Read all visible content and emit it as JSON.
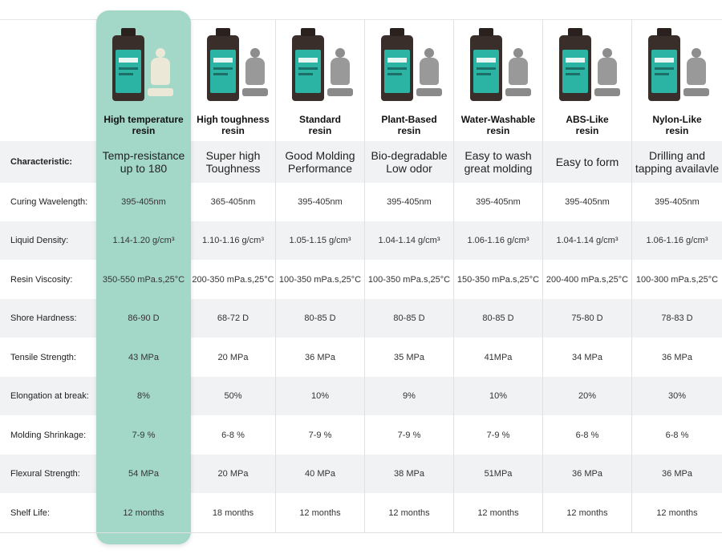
{
  "row_labels": [
    "Characteristic:",
    "Curing Wavelength:",
    "Liquid Density:",
    "Resin Viscosity:",
    "Shore Hardness:",
    "Tensile Strength:",
    "Elongation at break:",
    "Molding Shrinkage:",
    "Flexural Strength:",
    "Shelf Life:"
  ],
  "products": [
    {
      "name_line1": "High temperature",
      "name_line2": "resin",
      "char_line1": "Temp-resistance",
      "char_line2": "up to 180",
      "values": [
        "395-405nm",
        "1.14-1.20 g/cm³",
        "350-550 mPa.s,25°C",
        "86-90 D",
        "43 MPa",
        "8%",
        "7-9 %",
        "54 MPa",
        "12 months"
      ]
    },
    {
      "name_line1": "High toughness",
      "name_line2": "resin",
      "char_line1": "Super high",
      "char_line2": "Toughness",
      "values": [
        "365-405nm",
        "1.10-1.16 g/cm³",
        "200-350 mPa.s,25°C",
        "68-72 D",
        "20 MPa",
        "50%",
        "6-8 %",
        "20 MPa",
        "18 months"
      ]
    },
    {
      "name_line1": "Standard",
      "name_line2": "resin",
      "char_line1": "Good Molding",
      "char_line2": "Performance",
      "values": [
        "395-405nm",
        "1.05-1.15 g/cm³",
        "100-350 mPa.s,25°C",
        "80-85 D",
        "36 MPa",
        "10%",
        "7-9 %",
        "40 MPa",
        "12 months"
      ]
    },
    {
      "name_line1": "Plant-Based",
      "name_line2": "resin",
      "char_line1": "Bio-degradable",
      "char_line2": "Low odor",
      "values": [
        "395-405nm",
        "1.04-1.14 g/cm³",
        "100-350 mPa.s,25°C",
        "80-85 D",
        "35 MPa",
        "9%",
        "7-9 %",
        "38 MPa",
        "12 months"
      ]
    },
    {
      "name_line1": "Water-Washable",
      "name_line2": "resin",
      "char_line1": "Easy to wash",
      "char_line2": "great molding",
      "values": [
        "395-405nm",
        "1.06-1.16 g/cm³",
        "150-350 mPa.s,25°C",
        "80-85 D",
        "41MPa",
        "10%",
        "7-9 %",
        "51MPa",
        "12 months"
      ]
    },
    {
      "name_line1": "ABS-Like",
      "name_line2": "resin",
      "char_line1": "Easy to form",
      "char_line2": "",
      "values": [
        "395-405nm",
        "1.04-1.14 g/cm³",
        "200-400 mPa.s,25°C",
        "75-80 D",
        "34 MPa",
        "20%",
        "6-8 %",
        "36 MPa",
        "12 months"
      ]
    },
    {
      "name_line1": "Nylon-Like",
      "name_line2": "resin",
      "char_line1": "Drilling and",
      "char_line2": "tapping availavle",
      "values": [
        "395-405nm",
        "1.06-1.16 g/cm³",
        "100-300 mPa.s,25°C",
        "78-83 D",
        "36 MPa",
        "30%",
        "6-8 %",
        "36 MPa",
        "12 months"
      ]
    }
  ]
}
